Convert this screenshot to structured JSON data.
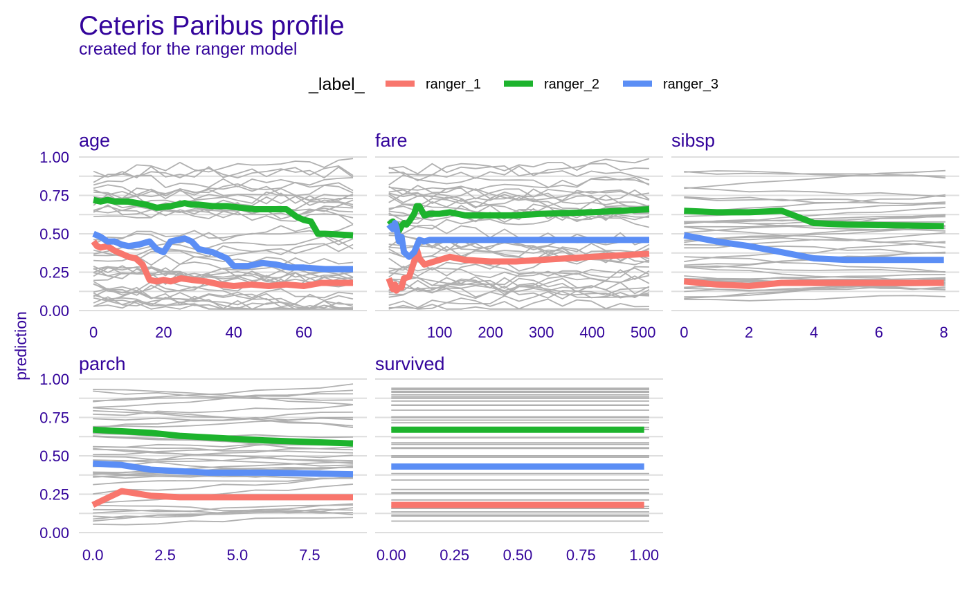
{
  "chart_data": {
    "type": "line",
    "title": "Ceteris Paribus profile",
    "subtitle": "created for the ranger model",
    "ylabel": "prediction",
    "ylim": [
      0,
      1
    ],
    "y_ticks": [
      "0.00",
      "0.25",
      "0.50",
      "0.75",
      "1.00"
    ],
    "legend": {
      "title": "_label_",
      "placement": "top",
      "entries": [
        {
          "name": "ranger_1",
          "color": "#F8766D"
        },
        {
          "name": "ranger_2",
          "color": "#1DB32D"
        },
        {
          "name": "ranger_3",
          "color": "#5B8EF5"
        }
      ]
    },
    "background_color": "#b0b0b0",
    "panels": [
      {
        "variable": "age",
        "xlim": [
          -1,
          74
        ],
        "x_ticks": [
          0,
          20,
          40,
          60
        ],
        "x_tick_labels": [
          "0",
          "20",
          "40",
          "60"
        ],
        "series": [
          {
            "name": "ranger_1",
            "x": [
              0,
              1,
              2,
              4,
              6,
              8,
              10,
              12,
              14,
              16,
              18,
              20,
              22,
              25,
              28,
              32,
              36,
              40,
              45,
              50,
              55,
              60,
              65,
              74
            ],
            "y": [
              0.45,
              0.42,
              0.41,
              0.42,
              0.39,
              0.37,
              0.35,
              0.34,
              0.3,
              0.2,
              0.19,
              0.2,
              0.19,
              0.21,
              0.2,
              0.19,
              0.17,
              0.16,
              0.17,
              0.16,
              0.17,
              0.16,
              0.18,
              0.18
            ]
          },
          {
            "name": "ranger_2",
            "x": [
              0,
              2,
              4,
              6,
              10,
              15,
              18,
              22,
              26,
              28,
              30,
              34,
              38,
              42,
              46,
              50,
              55,
              58,
              60,
              62,
              64,
              66,
              74
            ],
            "y": [
              0.72,
              0.71,
              0.72,
              0.71,
              0.71,
              0.69,
              0.67,
              0.68,
              0.7,
              0.69,
              0.69,
              0.68,
              0.68,
              0.67,
              0.66,
              0.66,
              0.66,
              0.61,
              0.59,
              0.58,
              0.5,
              0.5,
              0.49
            ]
          },
          {
            "name": "ranger_3",
            "x": [
              0,
              2,
              4,
              6,
              8,
              10,
              13,
              16,
              18,
              20,
              22,
              24,
              26,
              28,
              30,
              34,
              38,
              40,
              44,
              48,
              52,
              56,
              60,
              66,
              74
            ],
            "y": [
              0.5,
              0.48,
              0.45,
              0.45,
              0.43,
              0.42,
              0.43,
              0.45,
              0.4,
              0.38,
              0.45,
              0.46,
              0.47,
              0.45,
              0.4,
              0.38,
              0.34,
              0.29,
              0.29,
              0.31,
              0.3,
              0.28,
              0.28,
              0.27,
              0.27
            ]
          }
        ]
      },
      {
        "variable": "fare",
        "xlim": [
          -5,
          512
        ],
        "x_ticks": [
          100,
          200,
          300,
          400,
          500
        ],
        "x_tick_labels": [
          "100",
          "200",
          "300",
          "400",
          "500"
        ],
        "series": [
          {
            "name": "ranger_1",
            "x": [
              0,
              8,
              12,
              15,
              20,
              25,
              30,
              40,
              50,
              55,
              60,
              70,
              80,
              100,
              120,
              150,
              200,
              250,
              300,
              400,
              512
            ],
            "y": [
              0.21,
              0.14,
              0.17,
              0.13,
              0.15,
              0.15,
              0.21,
              0.22,
              0.32,
              0.4,
              0.34,
              0.3,
              0.31,
              0.33,
              0.35,
              0.33,
              0.32,
              0.32,
              0.33,
              0.35,
              0.37
            ]
          },
          {
            "name": "ranger_2",
            "x": [
              0,
              8,
              12,
              15,
              20,
              25,
              30,
              35,
              40,
              50,
              55,
              60,
              65,
              70,
              80,
              100,
              120,
              150,
              200,
              250,
              300,
              400,
              512
            ],
            "y": [
              0.56,
              0.58,
              0.54,
              0.56,
              0.52,
              0.55,
              0.57,
              0.56,
              0.58,
              0.63,
              0.68,
              0.68,
              0.65,
              0.62,
              0.63,
              0.63,
              0.64,
              0.62,
              0.62,
              0.62,
              0.63,
              0.64,
              0.66
            ]
          },
          {
            "name": "ranger_3",
            "x": [
              0,
              8,
              12,
              15,
              20,
              25,
              30,
              40,
              50,
              55,
              60,
              70,
              80,
              100,
              150,
              200,
              300,
              400,
              512
            ],
            "y": [
              0.56,
              0.53,
              0.57,
              0.54,
              0.45,
              0.48,
              0.38,
              0.35,
              0.38,
              0.42,
              0.46,
              0.45,
              0.46,
              0.46,
              0.46,
              0.46,
              0.46,
              0.46,
              0.46
            ]
          }
        ]
      },
      {
        "variable": "sibsp",
        "xlim": [
          -0.05,
          8.05
        ],
        "x_ticks": [
          0,
          2,
          4,
          6,
          8
        ],
        "x_tick_labels": [
          "0",
          "2",
          "4",
          "6",
          "8"
        ],
        "series": [
          {
            "name": "ranger_1",
            "x": [
              0,
              1,
              2,
              3,
              4,
              5,
              8
            ],
            "y": [
              0.19,
              0.17,
              0.16,
              0.18,
              0.18,
              0.18,
              0.18
            ]
          },
          {
            "name": "ranger_2",
            "x": [
              0,
              1,
              2,
              3,
              4,
              5,
              8
            ],
            "y": [
              0.65,
              0.64,
              0.64,
              0.65,
              0.57,
              0.56,
              0.55
            ]
          },
          {
            "name": "ranger_3",
            "x": [
              0,
              1,
              2,
              3,
              4,
              5,
              8
            ],
            "y": [
              0.49,
              0.45,
              0.42,
              0.38,
              0.34,
              0.33,
              0.33
            ]
          }
        ]
      },
      {
        "variable": "parch",
        "xlim": [
          -0.1,
          9
        ],
        "x_ticks": [
          0,
          2.5,
          5,
          7.5
        ],
        "x_tick_labels": [
          "0.0",
          "2.5",
          "5.0",
          "7.5"
        ],
        "series": [
          {
            "name": "ranger_1",
            "x": [
              0,
              1,
              2,
              3,
              4,
              5,
              6,
              9
            ],
            "y": [
              0.18,
              0.27,
              0.24,
              0.23,
              0.23,
              0.23,
              0.23,
              0.23
            ]
          },
          {
            "name": "ranger_2",
            "x": [
              0,
              1,
              2,
              3,
              4,
              5,
              6,
              9
            ],
            "y": [
              0.67,
              0.66,
              0.65,
              0.63,
              0.62,
              0.61,
              0.6,
              0.58
            ]
          },
          {
            "name": "ranger_3",
            "x": [
              0,
              1,
              2,
              3,
              4,
              5,
              6,
              9
            ],
            "y": [
              0.45,
              0.44,
              0.41,
              0.4,
              0.39,
              0.39,
              0.39,
              0.38
            ]
          }
        ]
      },
      {
        "variable": "survived",
        "xlim": [
          -0.02,
          1.02
        ],
        "x_ticks": [
          0,
          0.25,
          0.5,
          0.75,
          1
        ],
        "x_tick_labels": [
          "0.00",
          "0.25",
          "0.50",
          "0.75",
          "1.00"
        ],
        "series": [
          {
            "name": "ranger_1",
            "x": [
              0,
              1
            ],
            "y": [
              0.18,
              0.18
            ]
          },
          {
            "name": "ranger_2",
            "x": [
              0,
              1
            ],
            "y": [
              0.67,
              0.67
            ]
          },
          {
            "name": "ranger_3",
            "x": [
              0,
              1
            ],
            "y": [
              0.43,
              0.43
            ]
          }
        ]
      }
    ]
  }
}
